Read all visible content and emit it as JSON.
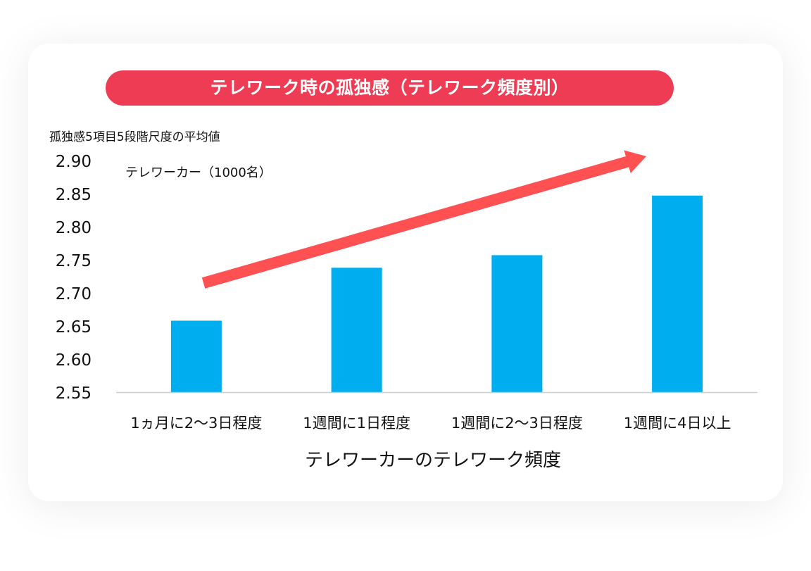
{
  "chart_data": {
    "type": "bar",
    "title": "テレワーク時の孤独感（テレワーク頻度別）",
    "ylabel": "孤独感5項目5段階尺度の平均値",
    "xlabel": "テレワーカーのテレワーク頻度",
    "ylim": [
      2.55,
      2.9
    ],
    "yticks": [
      "2.90",
      "2.85",
      "2.80",
      "2.75",
      "2.70",
      "2.65",
      "2.60",
      "2.55"
    ],
    "ytick_values": [
      2.9,
      2.85,
      2.8,
      2.75,
      2.7,
      2.65,
      2.6,
      2.55
    ],
    "categories": [
      "1ヵ月に2～3日程度",
      "1週間に1日程度",
      "1週間に2～3日程度",
      "1週間に4日以上"
    ],
    "series": [
      {
        "name": "テレワーカー（1000名）",
        "values": [
          2.658,
          2.738,
          2.757,
          2.847
        ]
      }
    ],
    "grid": false,
    "annotation": "trend-arrow-up"
  },
  "colors": {
    "title_bg": "#ef3c55",
    "bar": "#00aeef",
    "arrow": "#ff5052",
    "axis": "#cccccc"
  }
}
